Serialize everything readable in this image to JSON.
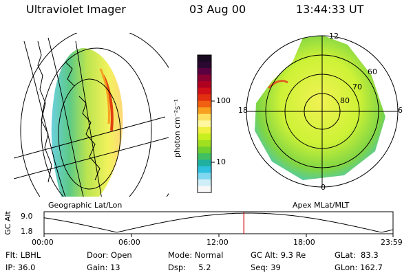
{
  "header": {
    "instrument": "Ultraviolet Imager",
    "date": "03 Aug 00",
    "time": "13:44:33 UT"
  },
  "left_panel": {
    "caption": "Geographic Lat/Lon"
  },
  "right_panel": {
    "caption": "Apex MLat/MLT",
    "mlt_labels": [
      "12",
      "18",
      "6",
      "0"
    ],
    "mlat_labels": [
      "60",
      "70",
      "80"
    ]
  },
  "colorbar": {
    "unit_label": "photon cm⁻²s⁻¹",
    "tick_labels": [
      "100",
      "10"
    ],
    "colors": [
      "#1a0a20",
      "#2a0830",
      "#5a0040",
      "#8a0030",
      "#b00020",
      "#d01018",
      "#e03010",
      "#f06010",
      "#f8a020",
      "#ffe060",
      "#fff8a0",
      "#f0f040",
      "#c8f020",
      "#a0e020",
      "#70d030",
      "#40c060",
      "#20b0a0",
      "#30c0e0",
      "#80d8f0",
      "#d0eef8",
      "#f8f8f8"
    ]
  },
  "altitude_plot": {
    "ylabel": "GC Alt",
    "y_ticks": [
      "9.0",
      "1.8"
    ],
    "x_ticks": [
      "00:00",
      "06:00",
      "12:00",
      "18:00",
      "23:59"
    ],
    "current_time_hours": 13.74,
    "marker_color": "#d00000"
  },
  "info": {
    "flt": "Flt: LBHL",
    "ip": "IP: 36.0",
    "door": "Door: Open",
    "gain": "Gain: 13",
    "mode": "Mode: Normal",
    "dsp": "Dsp:     5.2",
    "gc_alt": "GC Alt: 9.3 Re",
    "seq": "Seq: 39",
    "glat": "GLat:  83.3",
    "glon": "GLon: 162.7"
  }
}
